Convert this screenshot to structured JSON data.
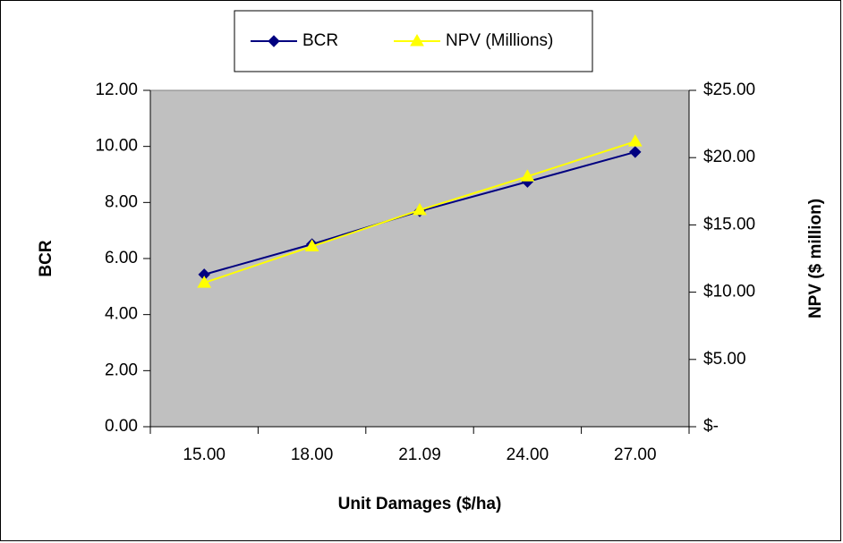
{
  "chart_data": {
    "type": "line",
    "xlabel": "Unit Damages ($/ha)",
    "ylabel": "BCR",
    "y2label": "NPV ($ million)",
    "categories": [
      "15.00",
      "18.00",
      "21.09",
      "24.00",
      "27.00"
    ],
    "series": [
      {
        "name": "BCR",
        "color": "#000080",
        "marker": "diamond",
        "values": [
          5.43,
          6.51,
          7.69,
          8.74,
          9.8
        ]
      },
      {
        "name": "NPV (Millions)",
        "color": "#ffff00",
        "marker": "triangle",
        "axis": "y2",
        "values": [
          10.7,
          13.4,
          16.1,
          18.6,
          21.2
        ]
      }
    ],
    "ylim": [
      0,
      12
    ],
    "yticks": [
      {
        "value": 0,
        "label": "0.00"
      },
      {
        "value": 2,
        "label": "2.00"
      },
      {
        "value": 4,
        "label": "4.00"
      },
      {
        "value": 6,
        "label": "6.00"
      },
      {
        "value": 8,
        "label": "8.00"
      },
      {
        "value": 10,
        "label": "10.00"
      },
      {
        "value": 12,
        "label": "12.00"
      }
    ],
    "y2lim": [
      0,
      25
    ],
    "y2ticks": [
      {
        "value": 0,
        "label": "$-"
      },
      {
        "value": 5,
        "label": "$5.00"
      },
      {
        "value": 10,
        "label": "$10.00"
      },
      {
        "value": 15,
        "label": "$15.00"
      },
      {
        "value": 20,
        "label": "$20.00"
      },
      {
        "value": 25,
        "label": "$25.00"
      }
    ],
    "plot_background": "#c0c0c0",
    "legend": "top"
  }
}
